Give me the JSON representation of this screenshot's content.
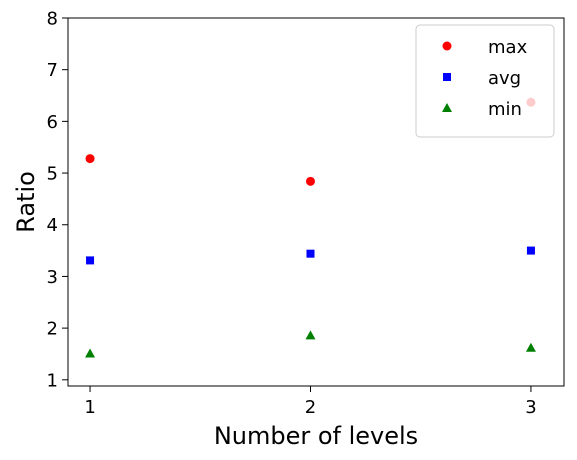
{
  "chart_data": {
    "type": "scatter",
    "xlabel": "Number of levels",
    "ylabel": "Ratio",
    "x": [
      1,
      2,
      3
    ],
    "xticks": [
      1,
      2,
      3
    ],
    "yticks": [
      1,
      2,
      3,
      4,
      5,
      6,
      7,
      8
    ],
    "xlim": [
      0.9,
      3.15
    ],
    "ylim": [
      0.88,
      8.0
    ],
    "grid": false,
    "legend_position": "top-right",
    "series": [
      {
        "name": "max",
        "values": [
          5.28,
          4.84,
          6.37
        ],
        "color": "#ff0000",
        "marker": "circle"
      },
      {
        "name": "avg",
        "values": [
          3.31,
          3.44,
          3.5
        ],
        "color": "#0000ff",
        "marker": "square"
      },
      {
        "name": "min",
        "values": [
          1.51,
          1.86,
          1.62
        ],
        "color": "#008000",
        "marker": "triangle"
      }
    ]
  }
}
